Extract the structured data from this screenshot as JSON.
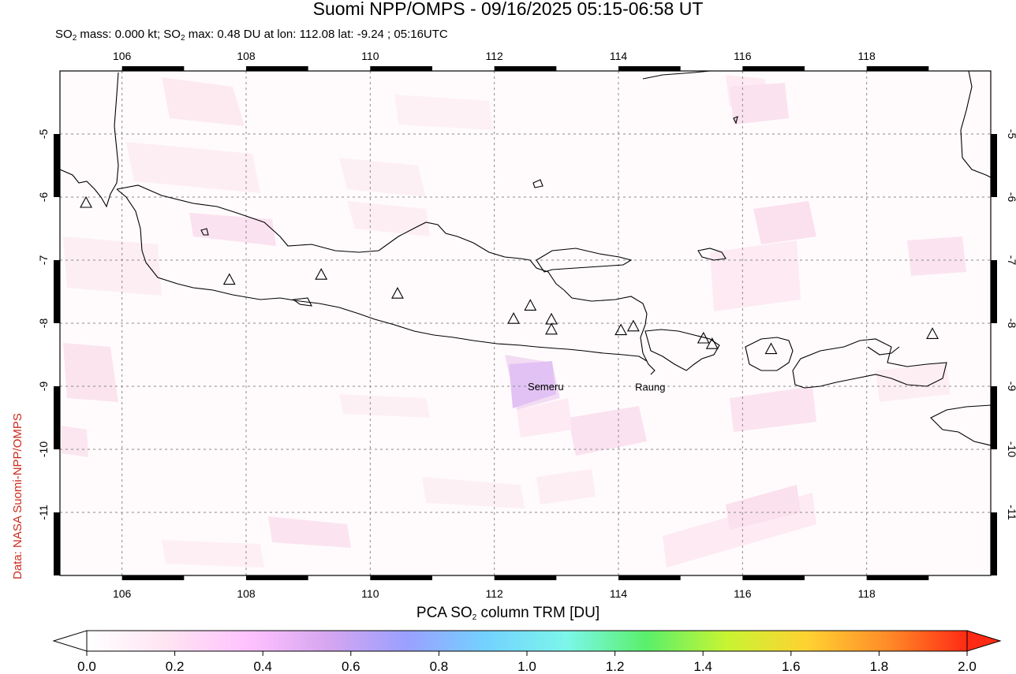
{
  "header": {
    "title": "Suomi NPP/OMPS - 09/16/2025 05:15-06:58 UT",
    "subtitle_prefix": "SO",
    "subtitle_sub1": "2",
    "subtitle_mid": " mass: 0.000 kt; SO",
    "subtitle_sub2": "2",
    "subtitle_rest": " max: 0.48 DU at lon: 112.08 lat: -9.24 ; 05:16UTC"
  },
  "credit": "Data: NASA Suomi-NPP/OMPS",
  "map": {
    "lon_range": [
      105.0,
      120.0
    ],
    "lat_range": [
      -12.0,
      -4.0
    ],
    "lon_ticks": [
      "106",
      "108",
      "110",
      "112",
      "114",
      "116",
      "118"
    ],
    "lat_ticks": [
      "-5",
      "-6",
      "-7",
      "-8",
      "-9",
      "-10",
      "-11"
    ],
    "gridlines": true,
    "volcano_labels": [
      "Semeru",
      "Raung"
    ],
    "volcano_label_positions": [
      {
        "name": "Semeru",
        "lon": 112.92,
        "lat": -8.11
      },
      {
        "name": "Raung",
        "lon": 114.04,
        "lat": -8.12
      }
    ],
    "volcanoes": [
      {
        "lon": 105.42,
        "lat": -6.1
      },
      {
        "lon": 107.73,
        "lat": -7.32
      },
      {
        "lon": 109.21,
        "lat": -7.24
      },
      {
        "lon": 110.44,
        "lat": -7.54
      },
      {
        "lon": 112.31,
        "lat": -7.94
      },
      {
        "lon": 112.58,
        "lat": -7.73
      },
      {
        "lon": 112.92,
        "lat": -7.95
      },
      {
        "lon": 112.92,
        "lat": -8.11
      },
      {
        "lon": 114.04,
        "lat": -8.12
      },
      {
        "lon": 114.24,
        "lat": -8.06
      },
      {
        "lon": 115.37,
        "lat": -8.25
      },
      {
        "lon": 115.51,
        "lat": -8.34
      },
      {
        "lon": 116.46,
        "lat": -8.42
      },
      {
        "lon": 119.06,
        "lat": -8.18
      }
    ],
    "so2_max_point": {
      "lon": 112.08,
      "lat": -9.24,
      "value_du": 0.48
    }
  },
  "colorbar": {
    "title_prefix": "PCA SO",
    "title_sub": "2",
    "title_rest": " column TRM [DU]",
    "ticks": [
      "0.0",
      "0.2",
      "0.4",
      "0.6",
      "0.8",
      "1.0",
      "1.2",
      "1.4",
      "1.6",
      "1.8",
      "2.0"
    ],
    "range": [
      0.0,
      2.0
    ],
    "colors": [
      "#ffffff",
      "#ffe4f2",
      "#ffc2ff",
      "#d6a6f0",
      "#9aa0ff",
      "#73d2ff",
      "#7cf6ea",
      "#5af06a",
      "#c8f432",
      "#ffd232",
      "#ff8c28",
      "#ff2a14"
    ]
  }
}
